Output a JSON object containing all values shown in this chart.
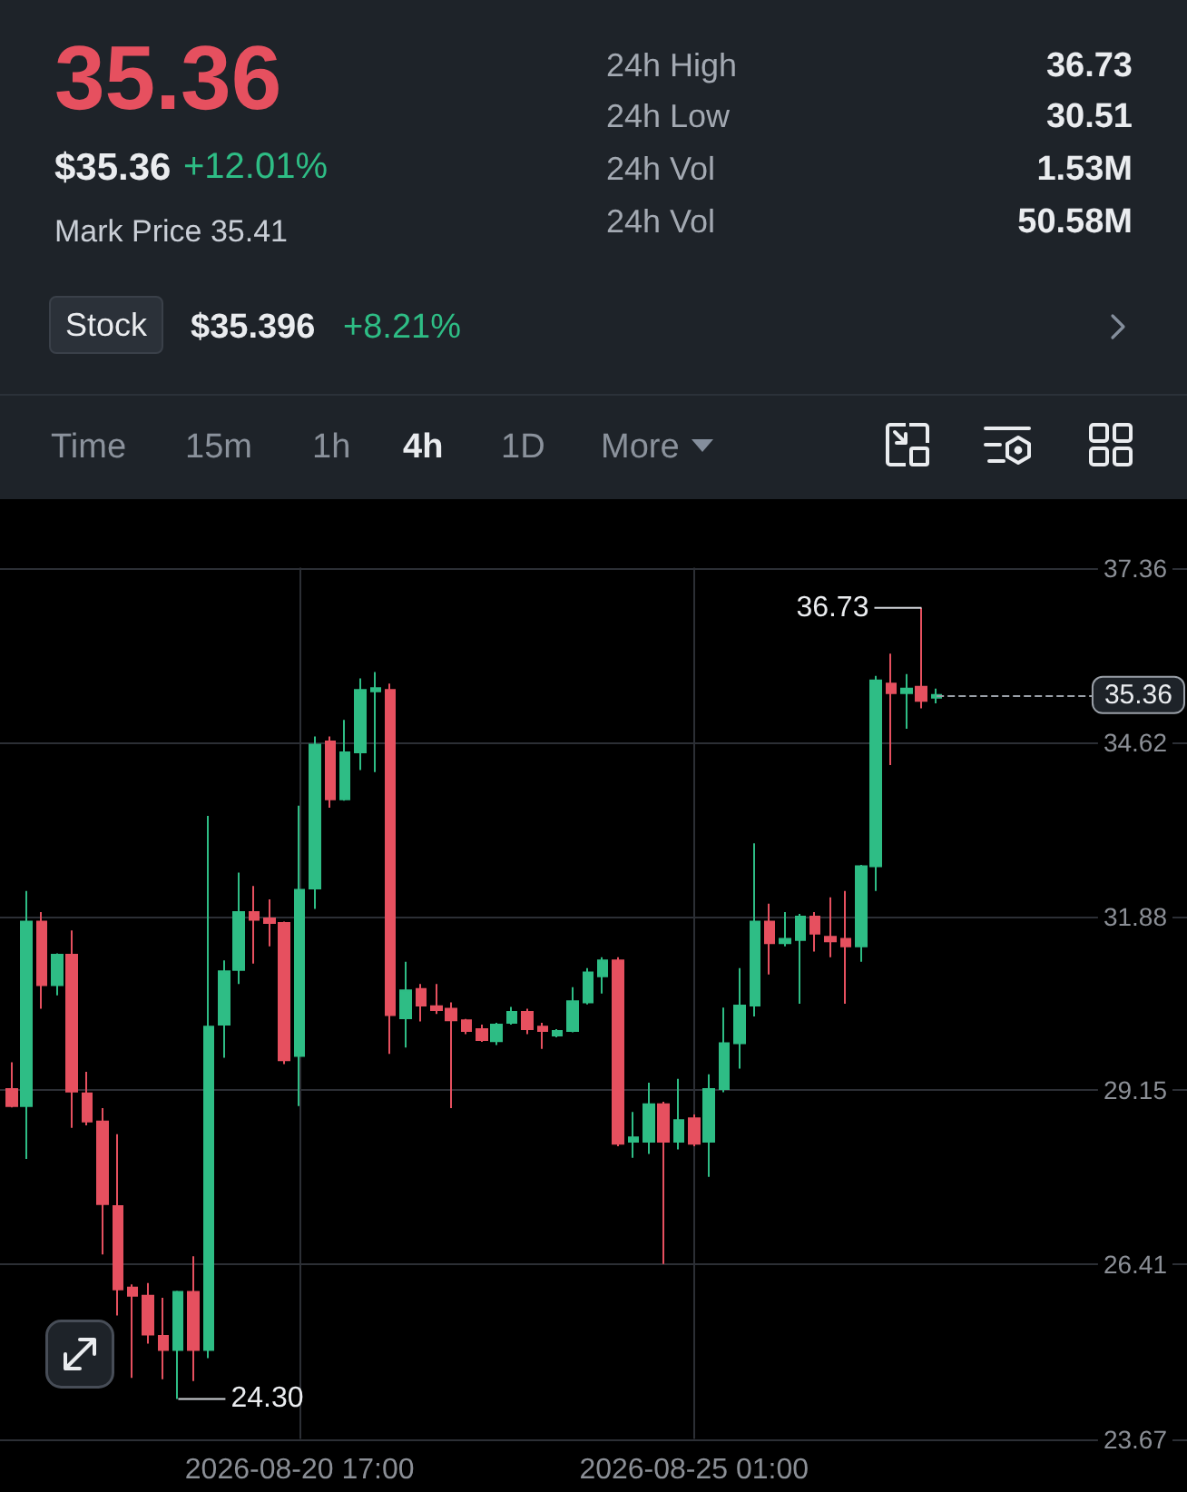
{
  "chart_data": [
    {
      "type": "other",
      "annotations": [
        "35.36",
        "$35.36",
        "+12.01%",
        "Mark Price 35.41",
        "24h High",
        "36.73",
        "24h Low",
        "30.51",
        "24h Vol",
        "1.53M",
        "24h Vol",
        "50.58M",
        "Stock",
        "$35.396",
        "+8.21%",
        "Time",
        "15m",
        "1h",
        "4h",
        "1D",
        "More"
      ]
    },
    {
      "type": "candlestick",
      "x": [
        "2026-08-17T13:00",
        "2026-08-17T17:00",
        "2026-08-17T21:00",
        "2026-08-18T01:00",
        "2026-08-18T05:00",
        "2026-08-18T09:00",
        "2026-08-18T13:00",
        "2026-08-18T17:00",
        "2026-08-18T21:00",
        "2026-08-19T01:00",
        "2026-08-19T05:00",
        "2026-08-19T09:00",
        "2026-08-19T13:00",
        "2026-08-19T17:00",
        "2026-08-19T21:00",
        "2026-08-20T01:00",
        "2026-08-20T05:00",
        "2026-08-20T09:00",
        "2026-08-20T13:00",
        "2026-08-20T17:00",
        "2026-08-20T21:00",
        "2026-08-21T01:00",
        "2026-08-21T05:00",
        "2026-08-21T09:00",
        "2026-08-21T13:00",
        "2026-08-21T17:00",
        "2026-08-21T21:00",
        "2026-08-22T01:00",
        "2026-08-22T05:00",
        "2026-08-22T09:00",
        "2026-08-22T13:00",
        "2026-08-22T17:00",
        "2026-08-22T21:00",
        "2026-08-23T01:00",
        "2026-08-23T05:00",
        "2026-08-23T09:00",
        "2026-08-23T13:00",
        "2026-08-23T17:00",
        "2026-08-23T21:00",
        "2026-08-24T01:00",
        "2026-08-24T05:00",
        "2026-08-24T09:00",
        "2026-08-24T13:00",
        "2026-08-24T17:00",
        "2026-08-24T21:00",
        "2026-08-25T01:00",
        "2026-08-25T05:00",
        "2026-08-25T09:00",
        "2026-08-25T13:00",
        "2026-08-25T17:00",
        "2026-08-25T21:00",
        "2026-08-26T01:00",
        "2026-08-26T05:00",
        "2026-08-26T09:00",
        "2026-08-26T13:00",
        "2026-08-26T17:00",
        "2026-08-26T21:00",
        "2026-08-27T01:00",
        "2026-08-27T05:00",
        "2026-08-27T09:00",
        "2026-08-27T13:00",
        "2026-08-27T17:00"
      ],
      "ohlc": [
        [
          29.17,
          29.59,
          28.88,
          28.9
        ],
        [
          28.9,
          32.28,
          28.07,
          31.8
        ],
        [
          31.8,
          31.95,
          30.43,
          30.8
        ],
        [
          30.8,
          31.3,
          30.64,
          31.28
        ],
        [
          31.28,
          31.66,
          28.56,
          29.13
        ],
        [
          29.1,
          29.44,
          28.6,
          28.66
        ],
        [
          28.66,
          28.87,
          26.57,
          27.36
        ],
        [
          27.33,
          28.46,
          25.61,
          26.02
        ],
        [
          26.05,
          26.1,
          24.63,
          25.92
        ],
        [
          25.92,
          26.12,
          25.17,
          25.31
        ],
        [
          25.29,
          25.89,
          24.61,
          25.07
        ],
        [
          25.07,
          26.0,
          24.3,
          25.98
        ],
        [
          25.98,
          26.54,
          24.58,
          25.07
        ],
        [
          25.07,
          33.46,
          24.94,
          30.15
        ],
        [
          30.18,
          31.19,
          29.66,
          31.02
        ],
        [
          31.04,
          32.57,
          30.82,
          31.95
        ],
        [
          31.95,
          32.36,
          31.14,
          31.83
        ],
        [
          31.85,
          32.15,
          31.41,
          31.78
        ],
        [
          31.78,
          31.8,
          29.56,
          29.62
        ],
        [
          29.69,
          33.62,
          28.9,
          32.3
        ],
        [
          32.32,
          34.71,
          32.0,
          34.58
        ],
        [
          34.63,
          34.71,
          33.59,
          33.72
        ],
        [
          33.72,
          34.97,
          33.7,
          34.46
        ],
        [
          34.46,
          35.62,
          34.18,
          35.44
        ],
        [
          35.42,
          35.72,
          34.15,
          35.47
        ],
        [
          35.44,
          35.54,
          29.72,
          30.33
        ],
        [
          30.28,
          31.17,
          29.82,
          30.72
        ],
        [
          30.74,
          30.82,
          30.23,
          30.48
        ],
        [
          30.47,
          30.82,
          30.35,
          30.41
        ],
        [
          30.43,
          30.53,
          28.87,
          30.25
        ],
        [
          30.25,
          30.27,
          30.03,
          30.08
        ],
        [
          30.11,
          30.18,
          29.91,
          29.94
        ],
        [
          29.92,
          30.21,
          29.86,
          30.18
        ],
        [
          30.21,
          30.46,
          30.18,
          30.38
        ],
        [
          30.38,
          30.43,
          30.03,
          30.11
        ],
        [
          30.15,
          30.21,
          29.8,
          30.08
        ],
        [
          30.01,
          30.11,
          29.98,
          30.08
        ],
        [
          30.08,
          30.77,
          30.06,
          30.55
        ],
        [
          30.53,
          31.07,
          30.5,
          31.0
        ],
        [
          30.94,
          31.24,
          30.67,
          31.19
        ],
        [
          31.19,
          31.24,
          28.27,
          28.31
        ],
        [
          28.34,
          28.81,
          28.09,
          28.41
        ],
        [
          28.34,
          29.27,
          28.15,
          28.93
        ],
        [
          28.93,
          28.97,
          26.42,
          28.34
        ],
        [
          28.34,
          29.33,
          28.22,
          28.68
        ],
        [
          28.71,
          28.77,
          28.27,
          28.31
        ],
        [
          28.34,
          29.4,
          27.79,
          29.17
        ],
        [
          29.17,
          30.45,
          29.12,
          29.89
        ],
        [
          29.89,
          31.07,
          29.49,
          30.48
        ],
        [
          30.48,
          33.03,
          30.31,
          31.8
        ],
        [
          31.8,
          32.08,
          30.97,
          31.46
        ],
        [
          31.46,
          31.95,
          31.41,
          31.53
        ],
        [
          31.51,
          31.92,
          30.51,
          31.88
        ],
        [
          31.88,
          31.95,
          31.33,
          31.61
        ],
        [
          31.56,
          32.18,
          31.24,
          31.49
        ],
        [
          31.53,
          32.28,
          30.51,
          31.41
        ],
        [
          31.41,
          32.69,
          31.17,
          32.67
        ],
        [
          32.67,
          35.66,
          32.28,
          35.59
        ],
        [
          35.54,
          36.01,
          34.26,
          35.39
        ],
        [
          35.39,
          35.69,
          34.83,
          35.46
        ],
        [
          35.49,
          36.73,
          35.15,
          35.27
        ],
        [
          35.32,
          35.46,
          35.23,
          35.36
        ]
      ],
      "colors": [
        "#e6505f",
        "#2ebd85",
        "#e6505f",
        "#2ebd85",
        "#e6505f",
        "#e6505f",
        "#e6505f",
        "#e6505f",
        "#e6505f",
        "#e6505f",
        "#e6505f",
        "#2ebd85",
        "#e6505f",
        "#2ebd85",
        "#2ebd85",
        "#2ebd85",
        "#e6505f",
        "#e6505f",
        "#e6505f",
        "#2ebd85",
        "#2ebd85",
        "#e6505f",
        "#2ebd85",
        "#2ebd85",
        "#2ebd85",
        "#e6505f",
        "#2ebd85",
        "#e6505f",
        "#e6505f",
        "#e6505f",
        "#e6505f",
        "#e6505f",
        "#2ebd85",
        "#2ebd85",
        "#e6505f",
        "#e6505f",
        "#2ebd85",
        "#2ebd85",
        "#2ebd85",
        "#2ebd85",
        "#e6505f",
        "#2ebd85",
        "#2ebd85",
        "#e6505f",
        "#2ebd85",
        "#e6505f",
        "#2ebd85",
        "#2ebd85",
        "#2ebd85",
        "#2ebd85",
        "#e6505f",
        "#2ebd85",
        "#2ebd85",
        "#e6505f",
        "#e6505f",
        "#e6505f",
        "#2ebd85",
        "#2ebd85",
        "#e6505f",
        "#2ebd85",
        "#e6505f",
        "#2ebd85"
      ],
      "xlim": [
        "2026-08-17T10:00",
        "2026-08-30T11:00"
      ],
      "xticks": [
        {
          "value": "2026-08-20T17:00",
          "label": "2026-08-20 17:00"
        },
        {
          "value": "2026-08-25T01:00",
          "label": "2026-08-25 01:00"
        }
      ],
      "ylim": [
        23.67,
        37.36
      ],
      "yticks": [
        23.67,
        26.41,
        29.15,
        31.88,
        34.62,
        37.36
      ],
      "grid": true,
      "ref_lines": [
        {
          "axis": "y",
          "value": 35.36,
          "label": "35.36",
          "line_style": "dashed",
          "color": "#9aa0a8"
        }
      ],
      "annotations": [
        {
          "text": "24.30",
          "x": "2026-08-19T09:00",
          "y": 24.3
        },
        {
          "text": "36.73",
          "x": "2026-08-27T13:00",
          "y": 36.73
        }
      ]
    }
  ]
}
